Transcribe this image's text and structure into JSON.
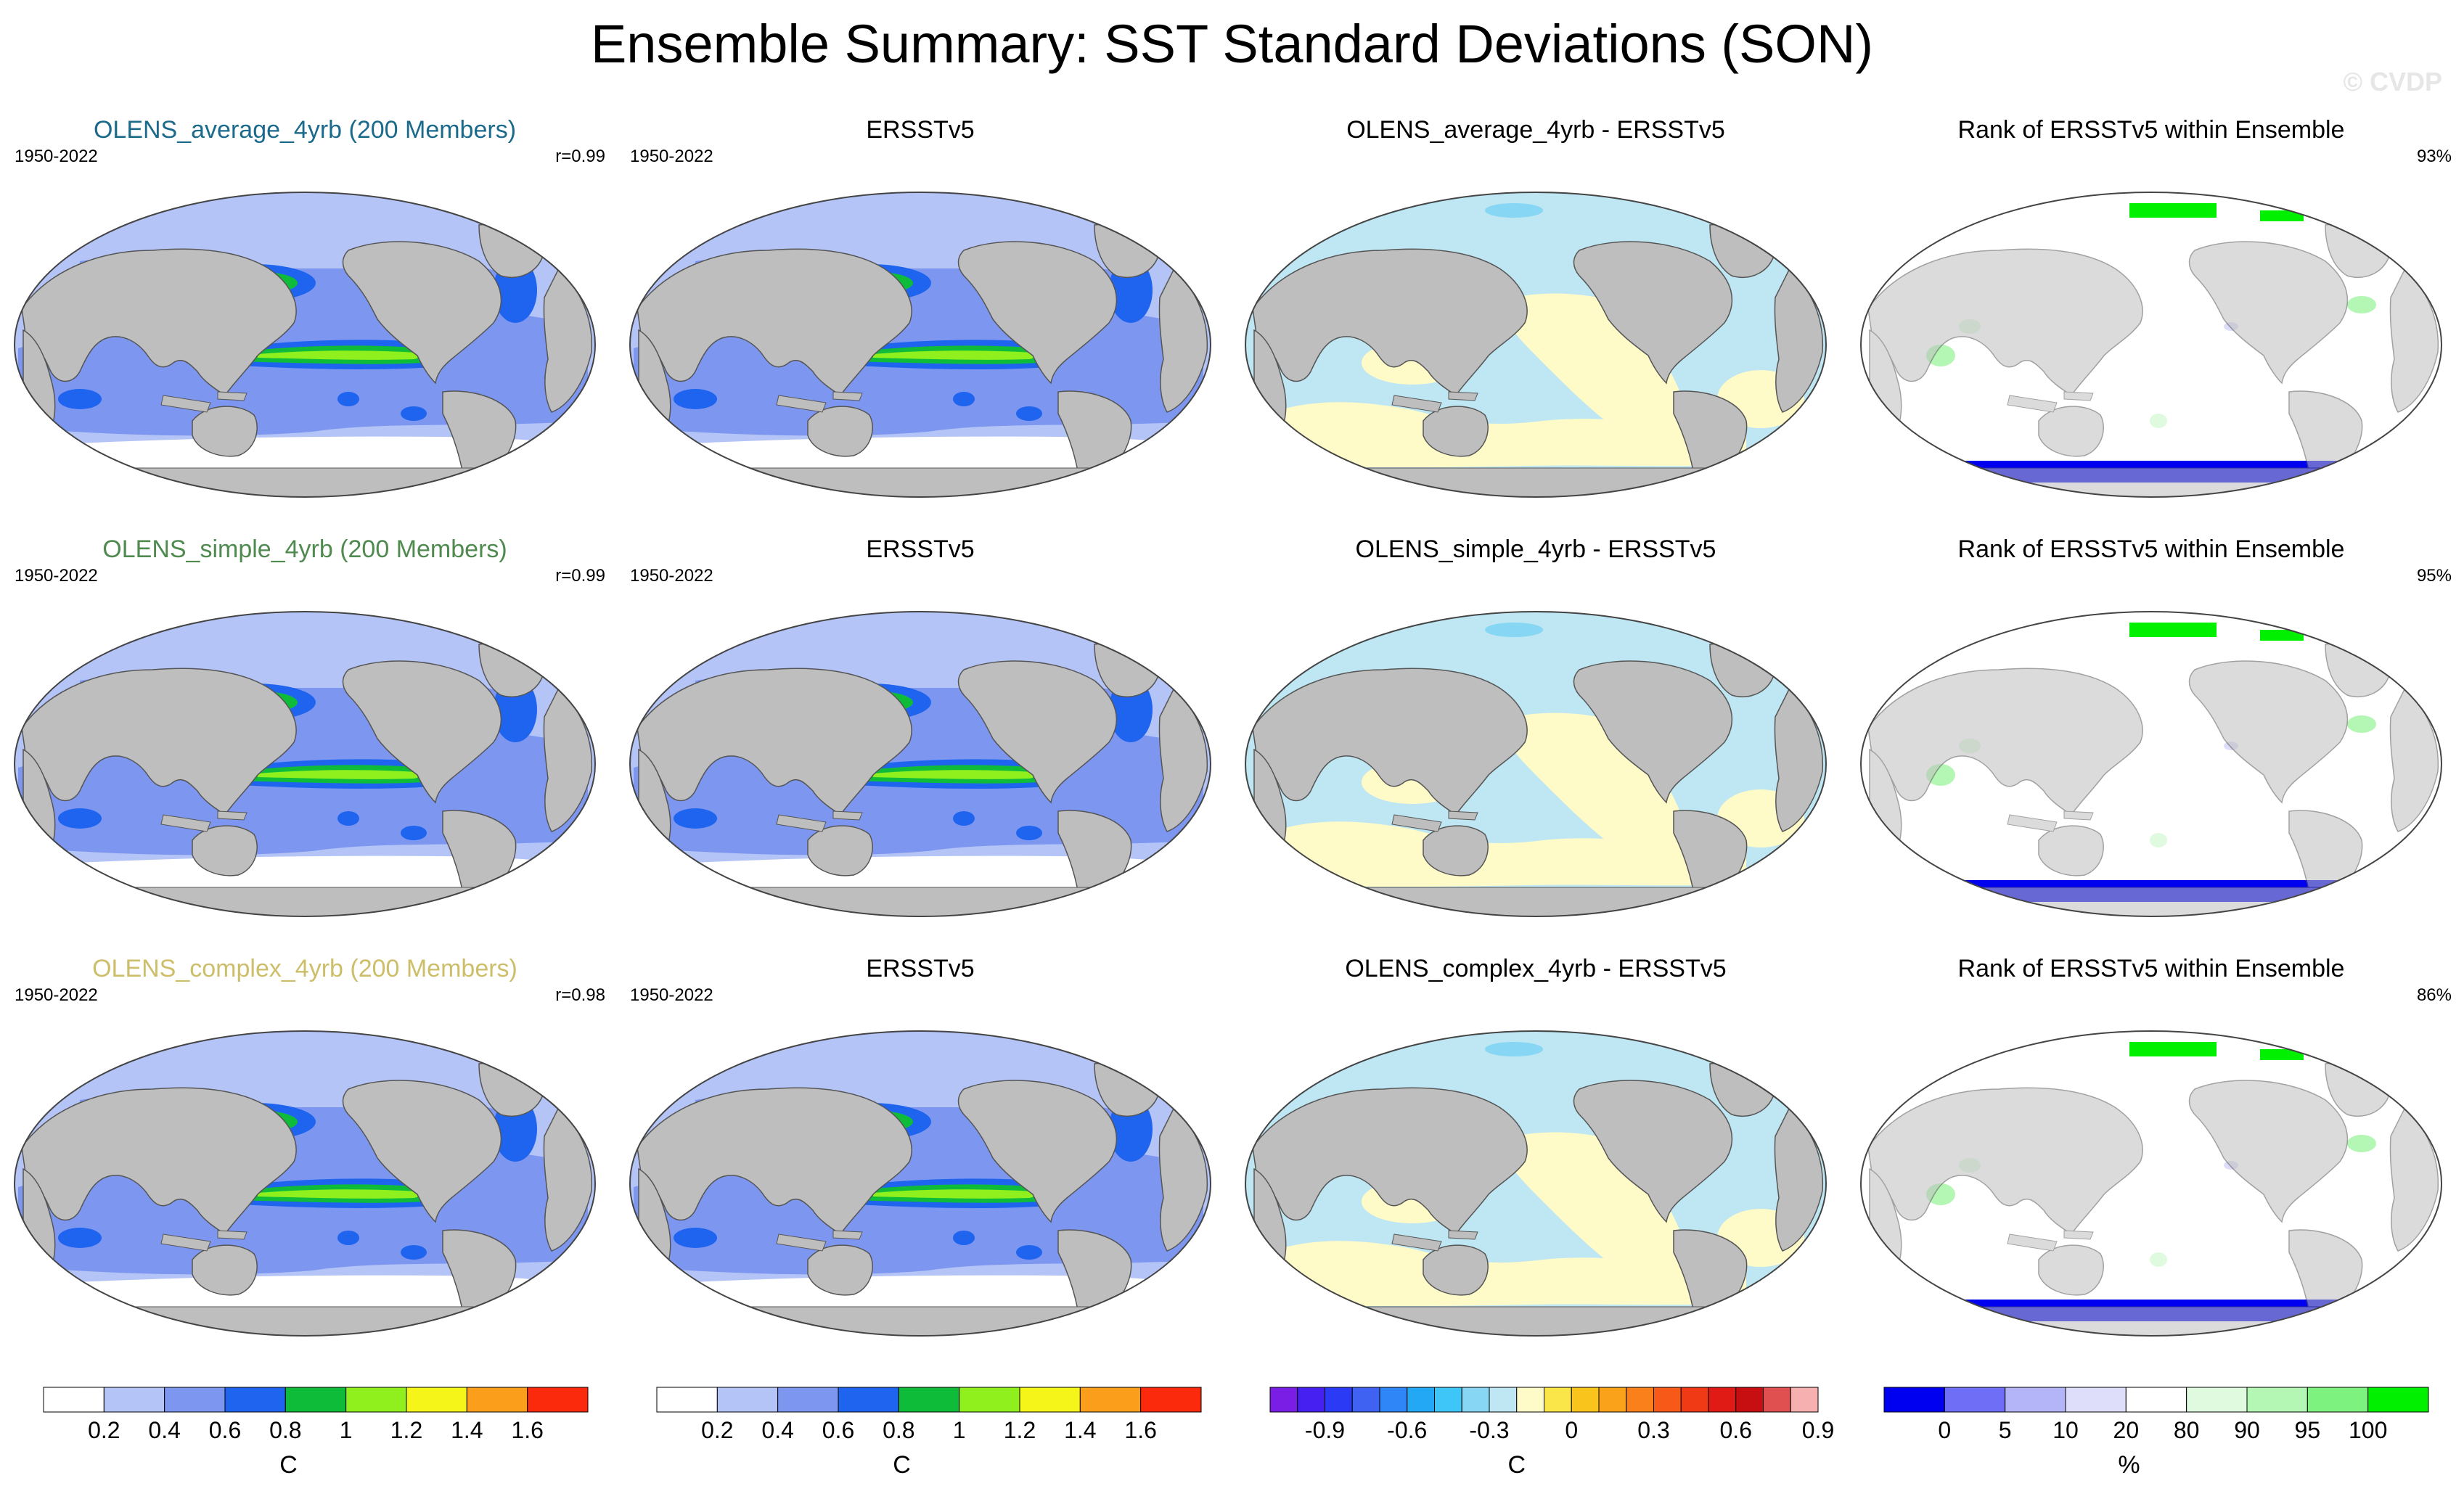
{
  "title": "Ensemble Summary: SST Standard Deviations (SON)",
  "watermark": "© CVDP",
  "rows": [
    {
      "model_title": "OLENS_average_4yrb (200 Members)",
      "title_color": "#1b6a8c",
      "period": "1950-2022",
      "corr": "r=0.99",
      "obs_title": "ERSSTv5",
      "obs_period": "1950-2022",
      "diff_title": "OLENS_average_4yrb - ERSSTv5",
      "rank_title": "Rank of ERSSTv5 within Ensemble",
      "rank_pct": "93%"
    },
    {
      "model_title": "OLENS_simple_4yrb (200 Members)",
      "title_color": "#4f8a4f",
      "period": "1950-2022",
      "corr": "r=0.99",
      "obs_title": "ERSSTv5",
      "obs_period": "1950-2022",
      "diff_title": "OLENS_simple_4yrb - ERSSTv5",
      "rank_title": "Rank of ERSSTv5 within Ensemble",
      "rank_pct": "95%"
    },
    {
      "model_title": "OLENS_complex_4yrb (200 Members)",
      "title_color": "#cdbe6a",
      "period": "1950-2022",
      "corr": "r=0.98",
      "obs_title": "ERSSTv5",
      "obs_period": "1950-2022",
      "diff_title": "OLENS_complex_4yrb - ERSSTv5",
      "rank_title": "Rank of ERSSTv5 within Ensemble",
      "rank_pct": "86%"
    }
  ],
  "chart_data": {
    "type": "heatmap",
    "map_projection": "global, Pacific-centered",
    "colorbars": [
      {
        "name": "sst-stddev",
        "unit": "C",
        "tick_labels": [
          "0.2",
          "0.4",
          "0.6",
          "0.8",
          "1",
          "1.2",
          "1.4",
          "1.6"
        ],
        "colors": [
          "#ffffff",
          "#b4c4f6",
          "#7d97f0",
          "#1f64ee",
          "#0fbc3a",
          "#8ff01e",
          "#f6f51a",
          "#fb9e1c",
          "#fb2a0c"
        ]
      },
      {
        "name": "sst-stddev-obs",
        "unit": "C",
        "tick_labels": [
          "0.2",
          "0.4",
          "0.6",
          "0.8",
          "1",
          "1.2",
          "1.4",
          "1.6"
        ],
        "colors": [
          "#ffffff",
          "#b4c4f6",
          "#7d97f0",
          "#1f64ee",
          "#0fbc3a",
          "#8ff01e",
          "#f6f51a",
          "#fb9e1c",
          "#fb2a0c"
        ]
      },
      {
        "name": "difference",
        "unit": "C",
        "tick_labels": [
          "-0.9",
          "-0.6",
          "-0.3",
          "0",
          "0.3",
          "0.6",
          "0.9"
        ],
        "colors": [
          "#7a1ee6",
          "#4620f0",
          "#2a3af5",
          "#3f62f2",
          "#2f86f6",
          "#22a8f5",
          "#3ec6f8",
          "#86d6f4",
          "#bee6f3",
          "#fffbc8",
          "#fbe64a",
          "#f9c51c",
          "#f9a21a",
          "#f9801a",
          "#f75a18",
          "#f03a16",
          "#e01a14",
          "#c70e10",
          "#e05050",
          "#f6b0b0"
        ]
      },
      {
        "name": "rank",
        "unit": "%",
        "tick_labels": [
          "0",
          "5",
          "10",
          "20",
          "80",
          "90",
          "95",
          "100"
        ],
        "colors": [
          "#0000f0",
          "#6e6ef6",
          "#b4b4f8",
          "#dedefa",
          "#ffffff",
          "#dffadf",
          "#b4f6b4",
          "#7ef27e",
          "#00f000"
        ]
      }
    ]
  }
}
